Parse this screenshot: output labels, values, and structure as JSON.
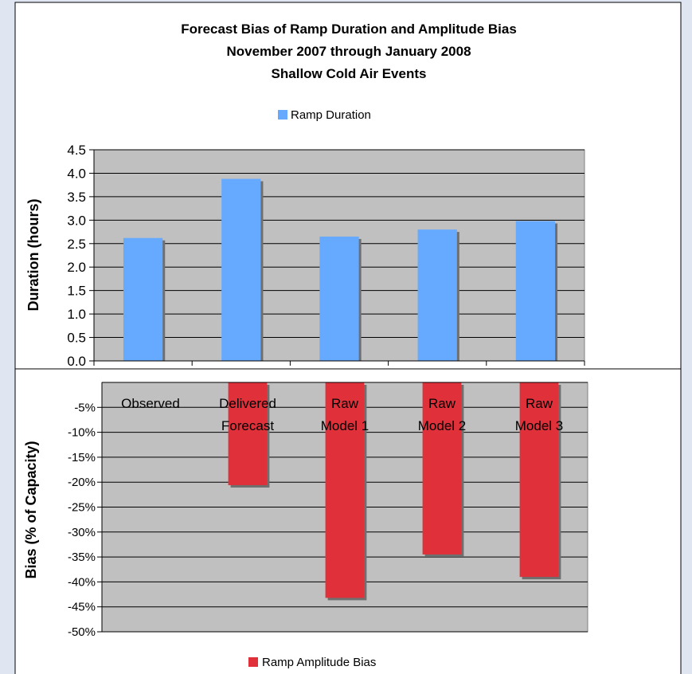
{
  "title_lines": [
    "Forecast Bias of Ramp Duration and Amplitude Bias",
    "November 2007 through January 2008",
    "Shallow Cold Air Events"
  ],
  "colors": {
    "duration_bar": "#66aaff",
    "bias_bar": "#e0303a",
    "plot_bg": "#c0c0c0",
    "panel_bg": "#ffffff"
  },
  "chart_data": [
    {
      "type": "bar",
      "categories": [
        "Observed",
        "Delivered Forecast",
        "Raw Model 1",
        "Raw Model 2",
        "Raw Model 3"
      ],
      "series": [
        {
          "name": "Ramp Duration",
          "values": [
            2.62,
            3.88,
            2.65,
            2.8,
            2.98
          ]
        }
      ],
      "ylabel": "Duration (hours)",
      "ylim": [
        0,
        4.5
      ],
      "yticks": [
        "0.0",
        "0.5",
        "1.0",
        "1.5",
        "2.0",
        "2.5",
        "3.0",
        "3.5",
        "4.0",
        "4.5"
      ],
      "grid": true,
      "legend_position": "top"
    },
    {
      "type": "bar",
      "categories": [
        "Observed",
        "Delivered Forecast",
        "Raw Model 1",
        "Raw Model 2",
        "Raw Model 3"
      ],
      "category_labels": [
        [
          "Observed"
        ],
        [
          "Delivered",
          "Forecast"
        ],
        [
          "Raw",
          "Model 1"
        ],
        [
          "Raw",
          "Model 2"
        ],
        [
          "Raw",
          "Model 3"
        ]
      ],
      "series": [
        {
          "name": "Ramp Amplitude Bias",
          "values": [
            0,
            -20.6,
            -43.2,
            -34.5,
            -39
          ]
        }
      ],
      "ylabel": "Bias (% of Capacity)",
      "ylim": [
        -50,
        0
      ],
      "yticks": [
        "-5%",
        "-10%",
        "-15%",
        "-20%",
        "-25%",
        "-30%",
        "-35%",
        "-40%",
        "-45%",
        "-50%"
      ],
      "grid": true,
      "legend_position": "bottom"
    }
  ]
}
